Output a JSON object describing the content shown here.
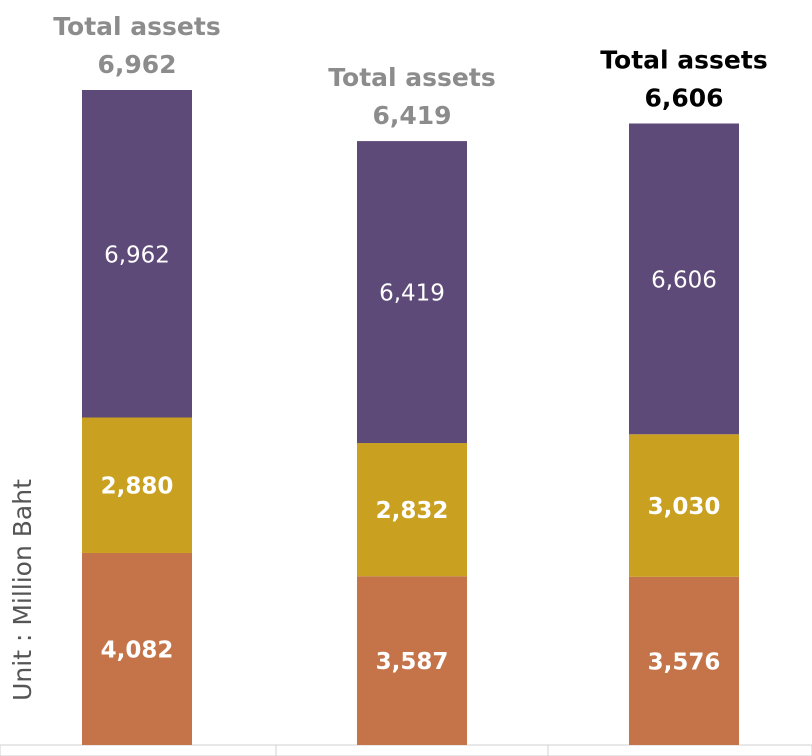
{
  "chart_data": {
    "type": "bar",
    "stacked": true,
    "y_label": "Unit : Million Baht",
    "categories": [
      null,
      null,
      null
    ],
    "series": [
      {
        "color": "#c5744a",
        "label_color": "#ffffff",
        "label_weight": "bold",
        "values": [
          4082,
          3587,
          3576
        ],
        "value_labels": [
          "4,082",
          "3,587",
          "3,576"
        ]
      },
      {
        "color": "#c9a020",
        "label_color": "#ffffff",
        "label_weight": "bold",
        "values": [
          2880,
          2832,
          3030
        ],
        "value_labels": [
          "2,880",
          "2,832",
          "3,030"
        ]
      },
      {
        "color": "#5e4a78",
        "label_color": "#ffffff",
        "label_weight": "normal",
        "values": [
          6962,
          6419,
          6606
        ],
        "value_labels": [
          "6,962",
          "6,419",
          "6,606"
        ]
      }
    ],
    "annotations": [
      {
        "text": "Total assets",
        "value": 6962,
        "value_label": "6,962",
        "color": "#8c8c8c"
      },
      {
        "text": "Total assets",
        "value": 6419,
        "value_label": "6,419",
        "color": "#8c8c8c"
      },
      {
        "text": "Total assets",
        "value": 6606,
        "value_label": "6,606",
        "color": "#000000"
      }
    ]
  }
}
